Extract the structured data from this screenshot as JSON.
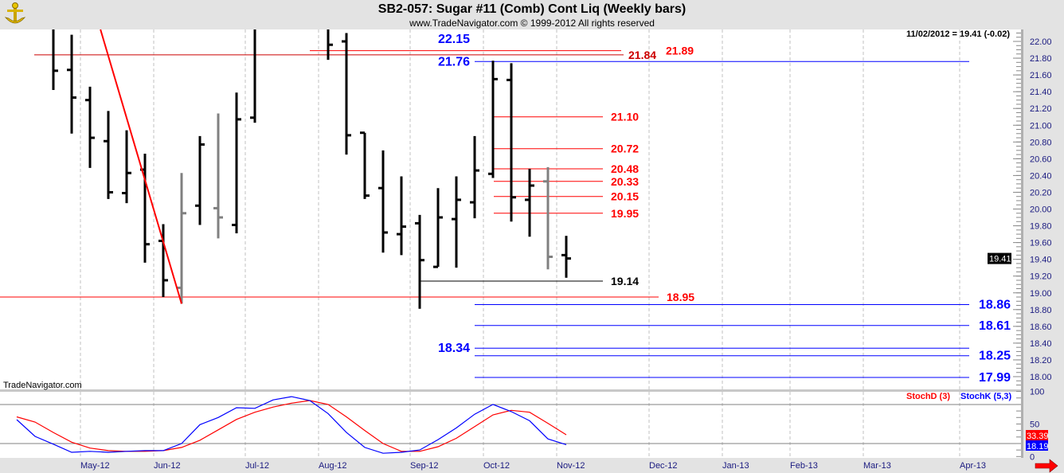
{
  "header": {
    "title": "SB2-057:  Sugar #11 (Comb) Cont Liq  (Weekly bars)",
    "copyright": "www.TradeNavigator.com © 1999-2012 All rights reserved",
    "logo_icon": "trade-navigator-anchor-icon"
  },
  "readout": "11/02/2012 = 19.41 (-0.02)",
  "watermark": "TradeNavigator.com",
  "scroll_arrow_icon": "red-right-arrow-icon",
  "chart_data": [
    {
      "type": "ohlc",
      "title": "SB2-057:  Sugar #11 (Comb) Cont Liq  (Weekly bars)",
      "ylim": [
        17.9,
        22.14
      ],
      "y_ticks": [
        "22.00",
        "21.80",
        "21.60",
        "21.40",
        "21.20",
        "21.00",
        "20.80",
        "20.60",
        "20.40",
        "20.20",
        "20.00",
        "19.80",
        "19.60",
        "19.40",
        "19.20",
        "19.00",
        "18.80",
        "18.60",
        "18.40",
        "18.20",
        "18.00"
      ],
      "x_ticks": [
        "May-12",
        "Jun-12",
        "Jul-12",
        "Aug-12",
        "Sep-12",
        "Oct-12",
        "Nov-12",
        "Dec-12",
        "Jan-13",
        "Feb-13",
        "Mar-13",
        "Apr-13"
      ],
      "grid": "vertical dashed at months",
      "last_price_tag": "19.41",
      "bars": [
        {
          "date": "2012-04-20",
          "open": null,
          "high": 22.3,
          "low": 21.42,
          "close": 21.65,
          "color": "#000000"
        },
        {
          "date": "2012-04-27",
          "open": 21.66,
          "high": 22.08,
          "low": 20.9,
          "close": 21.33,
          "color": "#000000"
        },
        {
          "date": "2012-05-04",
          "open": 21.3,
          "high": 21.46,
          "low": 20.49,
          "close": 20.85,
          "color": "#000000"
        },
        {
          "date": "2012-05-11",
          "open": 20.81,
          "high": 21.17,
          "low": 20.12,
          "close": 20.2,
          "color": "#000000"
        },
        {
          "date": "2012-05-18",
          "open": 20.19,
          "high": 20.94,
          "low": 20.07,
          "close": 20.43,
          "color": "#000000"
        },
        {
          "date": "2012-05-25",
          "open": 20.47,
          "high": 20.66,
          "low": 19.36,
          "close": 19.58,
          "color": "#000000"
        },
        {
          "date": "2012-06-01",
          "open": 19.62,
          "high": 19.82,
          "low": 18.95,
          "close": 19.15,
          "color": "#000000"
        },
        {
          "date": "2012-06-08",
          "open": 19.06,
          "high": 20.43,
          "low": 18.87,
          "close": 19.95,
          "color": "#808080"
        },
        {
          "date": "2012-06-15",
          "open": 20.04,
          "high": 20.87,
          "low": 19.81,
          "close": 20.77,
          "color": "#000000"
        },
        {
          "date": "2012-06-22",
          "open": 20.01,
          "high": 21.14,
          "low": 19.65,
          "close": 19.9,
          "color": "#808080"
        },
        {
          "date": "2012-06-29",
          "open": 19.81,
          "high": 21.39,
          "low": 19.71,
          "close": 21.07,
          "color": "#000000"
        },
        {
          "date": "2012-07-06",
          "open": 21.09,
          "high": 22.4,
          "low": 21.03,
          "close": null,
          "color": "#000000"
        },
        {
          "date": "2012-08-03",
          "open": null,
          "high": 22.3,
          "low": 21.78,
          "close": 21.96,
          "color": "#000000"
        },
        {
          "date": "2012-08-10",
          "open": 22.0,
          "high": 22.1,
          "low": 20.65,
          "close": 20.88,
          "color": "#000000"
        },
        {
          "date": "2012-08-17",
          "open": 20.91,
          "high": 20.91,
          "low": 20.12,
          "close": 20.16,
          "color": "#000000"
        },
        {
          "date": "2012-08-24",
          "open": 20.25,
          "high": 20.7,
          "low": 19.48,
          "close": 19.72,
          "color": "#000000"
        },
        {
          "date": "2012-08-31",
          "open": 19.7,
          "high": 20.39,
          "low": 19.45,
          "close": 19.79,
          "color": "#000000"
        },
        {
          "date": "2012-09-07",
          "open": 19.83,
          "high": 19.93,
          "low": 18.81,
          "close": 19.39,
          "color": "#000000"
        },
        {
          "date": "2012-09-14",
          "open": 19.31,
          "high": 20.25,
          "low": 19.31,
          "close": 19.9,
          "color": "#000000"
        },
        {
          "date": "2012-09-21",
          "open": 19.88,
          "high": 20.39,
          "low": 19.3,
          "close": 20.11,
          "color": "#000000"
        },
        {
          "date": "2012-09-28",
          "open": 20.08,
          "high": 20.87,
          "low": 19.89,
          "close": 20.46,
          "color": "#000000"
        },
        {
          "date": "2012-10-05",
          "open": 20.42,
          "high": 21.77,
          "low": 20.37,
          "close": 21.55,
          "color": "#000000"
        },
        {
          "date": "2012-10-12",
          "open": 21.54,
          "high": 21.74,
          "low": 19.85,
          "close": 20.14,
          "color": "#000000"
        },
        {
          "date": "2012-10-19",
          "open": 20.11,
          "high": 20.48,
          "low": 19.67,
          "close": 20.28,
          "color": "#000000"
        },
        {
          "date": "2012-10-26",
          "open": 20.33,
          "high": 20.5,
          "low": 19.28,
          "close": 19.43,
          "color": "#808080"
        },
        {
          "date": "2012-11-02",
          "open": 19.45,
          "high": 19.68,
          "low": 19.18,
          "close": 19.41,
          "color": "#000000"
        }
      ],
      "levels": [
        {
          "value": 22.15,
          "label": "22.15",
          "color": "#0000ff"
        },
        {
          "value": 21.89,
          "label": "21.89",
          "color": "#ff0000"
        },
        {
          "value": 21.84,
          "label": "21.84",
          "color": "#cc0000"
        },
        {
          "value": 21.76,
          "label": "21.76",
          "color": "#0000ff"
        },
        {
          "value": 21.1,
          "label": "21.10",
          "color": "#ff0000"
        },
        {
          "value": 20.72,
          "label": "20.72",
          "color": "#ff0000"
        },
        {
          "value": 20.48,
          "label": "20.48",
          "color": "#ff0000"
        },
        {
          "value": 20.33,
          "label": "20.33",
          "color": "#ff0000"
        },
        {
          "value": 20.15,
          "label": "20.15",
          "color": "#ff0000"
        },
        {
          "value": 19.95,
          "label": "19.95",
          "color": "#ff0000"
        },
        {
          "value": 19.14,
          "label": "19.14",
          "color": "#000000"
        },
        {
          "value": 18.95,
          "label": "18.95",
          "color": "#ff0000"
        },
        {
          "value": 18.86,
          "label": "18.86",
          "color": "#0000ff"
        },
        {
          "value": 18.61,
          "label": "18.61",
          "color": "#0000ff"
        },
        {
          "value": 18.34,
          "label": "18.34",
          "color": "#0000ff"
        },
        {
          "value": 18.25,
          "label": "18.25",
          "color": "#0000ff"
        },
        {
          "value": 17.99,
          "label": "17.99",
          "color": "#0000ff"
        }
      ],
      "trendline": {
        "from": {
          "date": "2012-05-08",
          "value": 22.15
        },
        "to": {
          "date": "2012-06-08",
          "value": 18.87
        },
        "color": "#ff0000"
      }
    },
    {
      "type": "line",
      "ylim": [
        0,
        100
      ],
      "y_ticks": [
        "100",
        "50",
        "0"
      ],
      "reference_lines": [
        80,
        20
      ],
      "dates_start": "2012-04-06",
      "series": [
        {
          "name": "StochD (3)",
          "color": "#ff0000",
          "last": "33.39",
          "values": [
            61,
            53,
            37,
            22,
            13,
            9,
            8,
            8,
            9,
            14,
            25,
            41,
            57,
            68,
            76,
            82,
            86,
            80,
            61,
            40,
            20,
            8,
            8,
            15,
            28,
            46,
            64,
            71,
            68,
            51,
            33.39
          ]
        },
        {
          "name": "StochK (5,3)",
          "color": "#0000ff",
          "last": "18.19",
          "values": [
            56.7,
            31,
            19,
            6.5,
            8,
            6.5,
            8,
            9,
            9,
            20,
            49,
            60,
            75,
            74,
            87,
            92,
            86,
            66,
            37,
            14,
            5,
            6.5,
            10,
            26,
            44,
            65,
            80,
            69,
            55,
            27,
            18.19
          ]
        }
      ]
    }
  ]
}
